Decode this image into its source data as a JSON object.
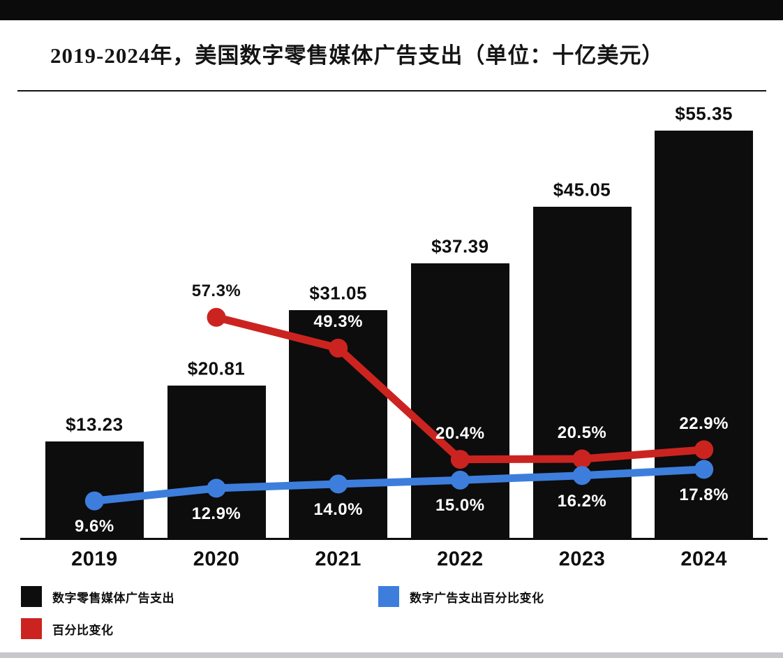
{
  "header": {
    "title": "2019-2024年，美国数字零售媒体广告支出（单位：十亿美元）"
  },
  "colors": {
    "bar_black": "#0d0d0d",
    "line_red": "#cb2420",
    "line_blue": "#3d7edd",
    "label_dark": "#111111",
    "label_light": "#ffffff",
    "background": "#ffffff"
  },
  "chart_data": {
    "type": "bar",
    "subtype": "bar-with-line-overlays",
    "title": "2019-2024年，美国数字零售媒体广告支出（单位：十亿美元）",
    "unit": "十亿美元",
    "categories": [
      "2019",
      "2020",
      "2021",
      "2022",
      "2023",
      "2024"
    ],
    "series": [
      {
        "name": "数字零售媒体广告支出",
        "type": "bar",
        "color": "#0d0d0d",
        "values": [
          13.23,
          20.81,
          31.05,
          37.39,
          45.05,
          55.35
        ],
        "labels": [
          "$13.23",
          "$20.81",
          "$31.05",
          "$37.39",
          "$45.05",
          "$55.35"
        ]
      },
      {
        "name": "百分比变化",
        "type": "line",
        "color": "#cb2420",
        "values": [
          null,
          57.3,
          49.3,
          20.4,
          20.5,
          22.9
        ],
        "labels": [
          null,
          "57.3%",
          "49.3%",
          "20.4%",
          "20.5%",
          "22.9%"
        ],
        "label_position": "above"
      },
      {
        "name": "数字广告支出百分比变化",
        "type": "line",
        "color": "#3d7edd",
        "values": [
          9.6,
          12.9,
          14.0,
          15.0,
          16.2,
          17.8
        ],
        "labels": [
          "9.6%",
          "12.9%",
          "14.0%",
          "15.0%",
          "16.2%",
          "17.8%"
        ],
        "label_position": "below"
      }
    ],
    "bar_axis": {
      "min": 0,
      "max_bar_value": 55.35
    },
    "grid": false,
    "axes_labels_hidden": true,
    "legend_position": "bottom"
  },
  "legend": {
    "items": [
      {
        "label": "数字零售媒体广告支出",
        "color": "#0d0d0d"
      },
      {
        "label": "数字广告支出百分比变化",
        "color": "#3d7edd"
      },
      {
        "label": "百分比变化",
        "color": "#cb2420"
      }
    ]
  }
}
